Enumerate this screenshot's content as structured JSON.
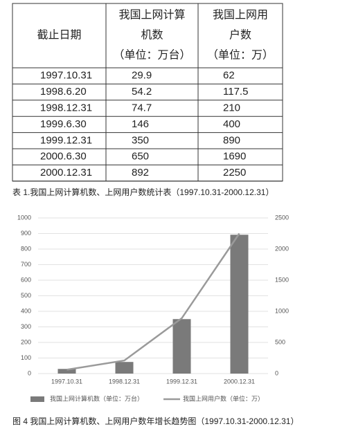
{
  "table": {
    "header": [
      [
        "截止日期"
      ],
      [
        "我国上网计算",
        "机数",
        "（单位：万台）"
      ],
      [
        "我国上网用",
        "户数",
        "（单位：万）"
      ]
    ],
    "rows": [
      [
        "1997.10.31",
        29.9,
        62
      ],
      [
        "1998.6.20",
        54.2,
        117.5
      ],
      [
        "1998.12.31",
        74.7,
        210
      ],
      [
        "1999.6.30",
        146,
        400
      ],
      [
        "1999.12.31",
        350,
        890
      ],
      [
        "2000.6.30",
        650,
        1690
      ],
      [
        "2000.12.31",
        892,
        2250
      ]
    ]
  },
  "table_caption": "表 1.我国上网计算机数、上网用户数统计表（1997.10.31-2000.12.31）",
  "chart_data": {
    "type": "bar_line",
    "categories": [
      "1997.10.31",
      "1998.12.31",
      "1999.12.31",
      "2000.12.31"
    ],
    "series": [
      {
        "name": "我国上网计算机数（单位：万台）",
        "type": "bar",
        "color": "#7a7a7a",
        "values": [
          29.9,
          74.7,
          350,
          892
        ]
      },
      {
        "name": "我国上网用户数（单位：万）",
        "type": "line",
        "color": "#9a9a9a",
        "axis": "y2",
        "values": [
          62,
          210,
          890,
          2250
        ]
      }
    ],
    "ylim": [
      0,
      1000
    ],
    "yticks": [
      0,
      100,
      200,
      300,
      400,
      500,
      600,
      700,
      800,
      900,
      1000
    ],
    "y2lim": [
      0,
      2500
    ],
    "y2ticks": [
      0,
      500,
      1000,
      1500,
      2000,
      2500
    ],
    "grid": true,
    "legend": "bottom"
  },
  "figure_caption": "图 4 我国上网计算机数、上网用户数年增长趋势图（1997.10.31-2000.12.31）"
}
